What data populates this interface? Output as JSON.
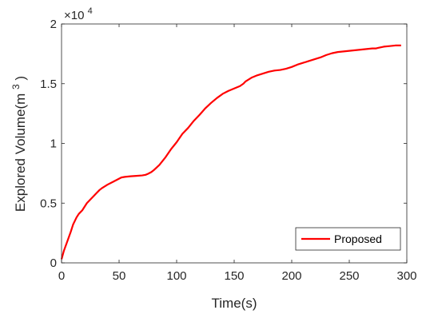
{
  "chart_data": {
    "type": "line",
    "xlabel": "Time(s)",
    "ylabel": {
      "base": "Explored Volume(m",
      "superscript": "3",
      "end": ")"
    },
    "xlim": [
      0,
      300
    ],
    "ylim": [
      0,
      2
    ],
    "xticks": [
      0,
      50,
      100,
      150,
      200,
      250,
      300
    ],
    "yticks": [
      0,
      0.5,
      1,
      1.5,
      2
    ],
    "ytick_labels": [
      "0",
      "0.5",
      "1",
      "1.5",
      "2"
    ],
    "y_multiplier": {
      "prefix": "×10",
      "exponent": "4"
    },
    "grid": false,
    "legend_position": "bottom-right",
    "series": [
      {
        "name": "Proposed",
        "color": "#ff0000",
        "x": [
          0,
          2,
          5,
          8,
          10,
          13,
          15,
          18,
          20,
          22,
          25,
          28,
          30,
          33,
          35,
          40,
          45,
          50,
          52,
          55,
          60,
          65,
          70,
          73,
          75,
          78,
          80,
          85,
          90,
          95,
          100,
          105,
          110,
          115,
          118,
          120,
          125,
          130,
          135,
          140,
          145,
          150,
          155,
          158,
          160,
          165,
          170,
          175,
          180,
          185,
          190,
          195,
          200,
          205,
          210,
          215,
          220,
          225,
          230,
          235,
          240,
          245,
          250,
          255,
          260,
          265,
          270,
          273,
          275,
          280,
          285,
          290,
          295
        ],
        "y": [
          0.03,
          0.1,
          0.18,
          0.26,
          0.32,
          0.38,
          0.41,
          0.44,
          0.47,
          0.5,
          0.53,
          0.56,
          0.58,
          0.61,
          0.625,
          0.655,
          0.68,
          0.705,
          0.715,
          0.72,
          0.725,
          0.728,
          0.732,
          0.737,
          0.745,
          0.76,
          0.775,
          0.82,
          0.88,
          0.95,
          1.01,
          1.08,
          1.13,
          1.19,
          1.22,
          1.24,
          1.295,
          1.34,
          1.38,
          1.415,
          1.44,
          1.46,
          1.48,
          1.5,
          1.52,
          1.55,
          1.57,
          1.585,
          1.6,
          1.61,
          1.615,
          1.625,
          1.64,
          1.66,
          1.675,
          1.69,
          1.705,
          1.72,
          1.74,
          1.755,
          1.765,
          1.77,
          1.775,
          1.78,
          1.785,
          1.79,
          1.795,
          1.795,
          1.8,
          1.81,
          1.815,
          1.82,
          1.82
        ]
      }
    ]
  }
}
